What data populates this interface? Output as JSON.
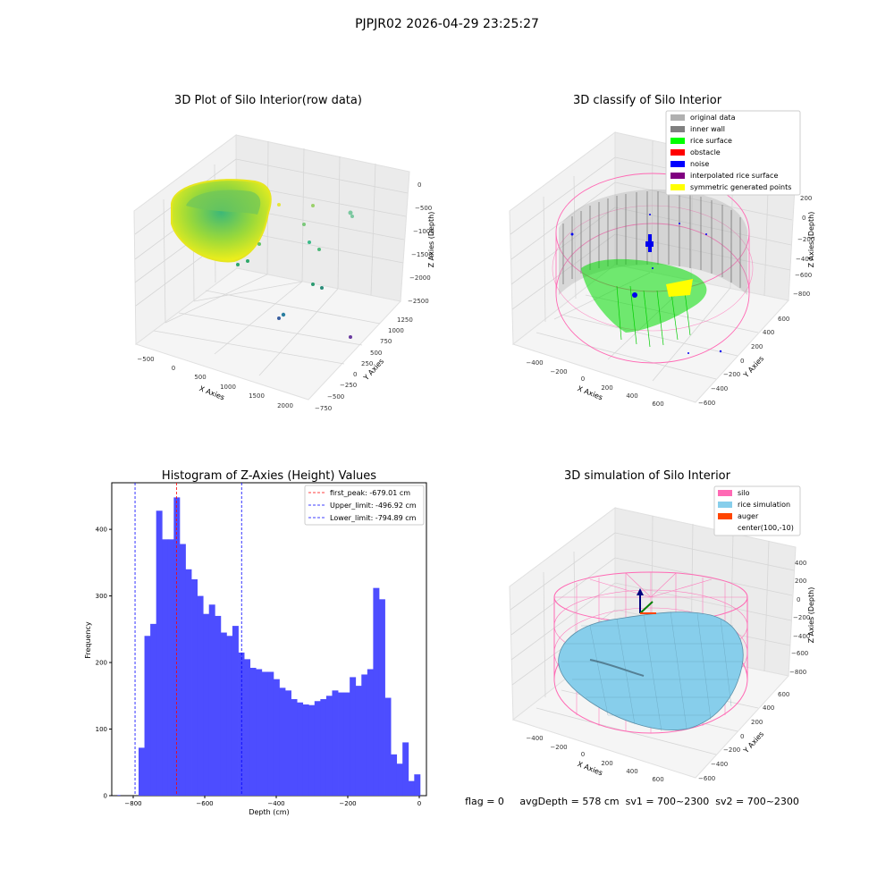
{
  "figure": {
    "suptitle": "PJPJR02 2026-04-29 23:25:27",
    "status_text": "flag = 0     avgDepth = 578 cm  sv1 = 700~2300  sv2 = 700~2300"
  },
  "colors": {
    "hist_bar": "#4d4dff",
    "first_peak_line": "#ff0000",
    "limit_line": "#0000ff",
    "silo": "#ff69b4",
    "rice_simulation": "#87ceeb",
    "auger": "#ff4500",
    "original_data": "#b0b0b0",
    "inner_wall": "#808080",
    "rice_surface": "#00ff00",
    "obstacle": "#ff0000",
    "noise": "#0000ff",
    "interpolated_rice_surface": "#800080",
    "symmetric_generated_points": "#ffff00"
  },
  "chart_data": [
    {
      "type": "scatter",
      "projection": "3d",
      "title": "3D Plot of Silo Interior(row data)",
      "xlabel": "X Axies",
      "ylabel": "Y Axies",
      "zlabel": "Z Axies (Depth)",
      "x_ticks": [
        "−500",
        "0",
        "500",
        "1000",
        "1500",
        "2000"
      ],
      "y_ticks": [
        "−750",
        "−500",
        "−250",
        "0",
        "250",
        "500",
        "750",
        "1000",
        "1250"
      ],
      "z_ticks": [
        "0",
        "−500",
        "−1000",
        "−1500",
        "−2000",
        "−2500"
      ],
      "colormap": "viridis"
    },
    {
      "type": "scatter",
      "projection": "3d",
      "title": "3D classify of Silo Interior",
      "xlabel": "X Axies",
      "ylabel": "Y Axies",
      "zlabel": "Z Axies (Depth)",
      "x_ticks": [
        "−400",
        "−200",
        "0",
        "200",
        "400",
        "600"
      ],
      "y_ticks": [
        "−600",
        "−400",
        "−200",
        "0",
        "200",
        "400",
        "600"
      ],
      "z_ticks": [
        "200",
        "0",
        "−200",
        "−400",
        "−600",
        "−800"
      ],
      "legend": [
        "original data",
        "inner wall",
        "rice surface",
        "obstacle",
        "noise",
        "interpolated rice surface",
        "symmetric generated points"
      ],
      "legend_placement": "top-right"
    },
    {
      "type": "bar",
      "title": "Histogram of Z-Axies (Height) Values",
      "xlabel": "Depth (cm)",
      "ylabel": "Frequency",
      "xlim": [
        -860,
        20
      ],
      "ylim": [
        0,
        470
      ],
      "x_ticks": [
        -800,
        -600,
        -400,
        -200,
        0
      ],
      "x_tick_labels": [
        "−800",
        "−600",
        "−400",
        "−200",
        "0"
      ],
      "y_ticks": [
        0,
        100,
        200,
        300,
        400
      ],
      "bin_width": 16.4,
      "bin_edges_start": -785,
      "values": [
        72,
        240,
        258,
        428,
        385,
        385,
        448,
        378,
        340,
        325,
        300,
        273,
        287,
        270,
        245,
        240,
        255,
        215,
        205,
        192,
        190,
        186,
        186,
        175,
        162,
        158,
        145,
        140,
        137,
        136,
        142,
        145,
        150,
        158,
        155,
        155,
        178,
        165,
        182,
        190,
        312,
        295,
        147,
        62,
        48,
        80,
        22,
        32
      ],
      "outliers": [
        {
          "x": -840,
          "y": 1
        }
      ],
      "vlines": [
        {
          "name": "first_peak: -679.01 cm",
          "x": -679.01,
          "color": "#ff0000"
        },
        {
          "name": "Upper_limit: -496.92 cm",
          "x": -496.92,
          "color": "#0000ff"
        },
        {
          "name": "Lower_limit: -794.89 cm",
          "x": -794.89,
          "color": "#0000ff"
        }
      ],
      "grid": false,
      "legend_placement": "top-right"
    },
    {
      "type": "surface",
      "projection": "3d",
      "title": "3D simulation of Silo Interior",
      "xlabel": "X Axies",
      "ylabel": "Y Axies",
      "zlabel": "Z Axies (Depth)",
      "x_ticks": [
        "−400",
        "−200",
        "0",
        "200",
        "400",
        "600"
      ],
      "y_ticks": [
        "−600",
        "−400",
        "−200",
        "0",
        "200",
        "400",
        "600"
      ],
      "z_ticks": [
        "400",
        "200",
        "0",
        "−200",
        "−400",
        "−600",
        "−800"
      ],
      "legend": [
        "silo",
        "rice simulation",
        "auger",
        "center(100,-10)"
      ],
      "legend_placement": "top-right"
    }
  ]
}
